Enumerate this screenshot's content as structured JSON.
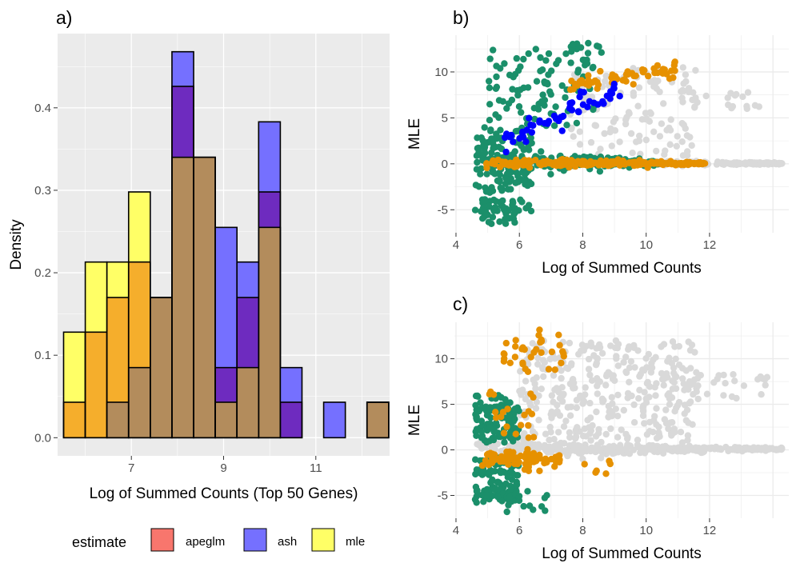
{
  "panels": {
    "a_label": "a)",
    "b_label": "b)",
    "c_label": "c)"
  },
  "legend": {
    "title": "estimate",
    "entries": [
      {
        "label": "apeglm",
        "color": "#F8766D"
      },
      {
        "label": "ash",
        "color": "#7570FF"
      },
      {
        "label": "mle",
        "color": "#FFFF66"
      }
    ]
  },
  "colors": {
    "panel_background": "#EBEBEB",
    "gridline": "#FFFFFF",
    "white_panel_grid": "#EBEBEB",
    "grey_points": "#D9D9D9",
    "green_points": "#1B8F6A",
    "orange_points": "#E69100",
    "blue_points": "#0000FF",
    "bar_outline": "#000000",
    "overlap_ash_mle": "#B38C5C",
    "overlap_ash_apeglm": "#6E2BBF",
    "overlap_mle_apeglm": "#F5AE2C"
  },
  "chart_data": [
    {
      "id": "a",
      "type": "bar",
      "subtype": "overlaid histogram",
      "xlabel": "Log of Summed Counts (Top 50 Genes)",
      "ylabel": "Density",
      "xlim": [
        5.4,
        12.6
      ],
      "ylim": [
        -0.022,
        0.49
      ],
      "x_ticks": [
        7,
        9,
        11
      ],
      "y_ticks": [
        0.0,
        0.1,
        0.2,
        0.3,
        0.4
      ],
      "y_tick_labels": [
        "0.0",
        "0.1",
        "0.2",
        "0.3",
        "0.4"
      ],
      "bin_width": 0.47,
      "bin_starts": [
        5.53,
        6.0,
        6.47,
        6.94,
        7.41,
        7.88,
        8.35,
        8.82,
        9.29,
        9.76,
        10.23,
        10.7,
        11.17,
        11.64,
        12.11
      ],
      "series": [
        {
          "name": "apeglm",
          "values": [
            0.043,
            0.128,
            0.17,
            0.213,
            0.17,
            0.426,
            0.34,
            0.085,
            0.17,
            0.298,
            0.043,
            0.0,
            0.0,
            0.0,
            0.043
          ]
        },
        {
          "name": "ash",
          "values": [
            0.0,
            0.0,
            0.043,
            0.085,
            0.17,
            0.468,
            0.34,
            0.255,
            0.213,
            0.383,
            0.085,
            0.0,
            0.043,
            0.0,
            0.043
          ]
        },
        {
          "name": "mle",
          "values": [
            0.128,
            0.213,
            0.213,
            0.298,
            0.17,
            0.34,
            0.34,
            0.043,
            0.085,
            0.255,
            0.0,
            0.0,
            0.0,
            0.0,
            0.043
          ]
        }
      ],
      "grid": true,
      "legend_position": "bottom"
    },
    {
      "id": "b",
      "type": "scatter",
      "xlabel": "Log of Summed Counts",
      "ylabel": "MLE",
      "xlim": [
        3.95,
        14.5
      ],
      "ylim": [
        -7.5,
        14.0
      ],
      "x_ticks": [
        4,
        6,
        8,
        10,
        12
      ],
      "y_ticks": [
        -5,
        0,
        5,
        10
      ],
      "grid": true,
      "series": [
        {
          "color": "grey",
          "clusters": [
            {
              "type": "band",
              "n": 170,
              "x": [
                8.8,
                14.3
              ],
              "y0": 0.05,
              "jitter0": 0.18,
              "jitter1": 0.04
            },
            {
              "type": "blob",
              "n": 120,
              "x": [
                7.6,
                11.6
              ],
              "y": [
                0.8,
                10.5
              ]
            },
            {
              "type": "blob",
              "n": 18,
              "x": [
                11.5,
                13.8
              ],
              "y": [
                6.0,
                8.0
              ]
            }
          ]
        },
        {
          "color": "green",
          "clusters": [
            {
              "type": "band",
              "n": 210,
              "x": [
                4.6,
                10.5
              ],
              "y0": 0.1,
              "jitter0": 0.8,
              "jitter1": 0.08
            },
            {
              "type": "blob",
              "n": 130,
              "x": [
                4.6,
                6.4
              ],
              "y": [
                -5.2,
                4.0
              ]
            },
            {
              "type": "blob",
              "n": 26,
              "x": [
                4.7,
                5.9
              ],
              "y": [
                -6.6,
                -4.5
              ]
            },
            {
              "type": "blob",
              "n": 95,
              "x": [
                5.0,
                8.4
              ],
              "y": [
                4.0,
                12.5
              ]
            },
            {
              "type": "blob",
              "n": 12,
              "x": [
                7.6,
                8.6
              ],
              "y": [
                12.0,
                13.2
              ]
            }
          ]
        },
        {
          "color": "orange",
          "clusters": [
            {
              "type": "band",
              "n": 260,
              "x": [
                4.9,
                11.9
              ],
              "y0": 0.05,
              "jitter0": 0.3,
              "jitter1": 0.05
            },
            {
              "type": "curve",
              "n": 55,
              "x": [
                7.6,
                11.0
              ],
              "y": [
                8.0,
                10.4
              ]
            }
          ]
        },
        {
          "color": "blue",
          "clusters": [
            {
              "type": "trend",
              "n": 55,
              "x": [
                5.4,
                9.2
              ],
              "y": [
                2.3,
                8.3
              ],
              "spread": 1.3
            }
          ]
        }
      ]
    },
    {
      "id": "c",
      "type": "scatter",
      "xlabel": "Log of Summed Counts",
      "ylabel": "MLE",
      "xlim": [
        3.95,
        14.5
      ],
      "ylim": [
        -7.5,
        14.0
      ],
      "x_ticks": [
        4,
        6,
        8,
        10,
        12
      ],
      "y_ticks": [
        -5,
        0,
        5,
        10
      ],
      "grid": true,
      "series": [
        {
          "color": "grey",
          "clusters": [
            {
              "type": "band",
              "n": 380,
              "x": [
                4.6,
                14.3
              ],
              "y0": 0.1,
              "jitter0": 0.5,
              "jitter1": 0.05
            },
            {
              "type": "blob",
              "n": 340,
              "x": [
                6.0,
                11.6
              ],
              "y": [
                1.0,
                12.0
              ]
            },
            {
              "type": "blob",
              "n": 25,
              "x": [
                11.5,
                13.9
              ],
              "y": [
                5.5,
                8.5
              ]
            }
          ]
        },
        {
          "color": "green",
          "clusters": [
            {
              "type": "blob",
              "n": 110,
              "x": [
                4.6,
                6.0
              ],
              "y": [
                0.8,
                6.0
              ]
            },
            {
              "type": "blob",
              "n": 120,
              "x": [
                4.6,
                6.0
              ],
              "y": [
                -5.8,
                -0.8
              ]
            },
            {
              "type": "blob",
              "n": 12,
              "x": [
                5.5,
                6.9
              ],
              "y": [
                -6.8,
                -4.5
              ]
            }
          ]
        },
        {
          "color": "orange",
          "clusters": [
            {
              "type": "band",
              "n": 70,
              "x": [
                4.8,
                7.3
              ],
              "y0": -1.0,
              "jitter0": 0.6,
              "jitter1": 0.3
            },
            {
              "type": "blob",
              "n": 35,
              "x": [
                5.5,
                7.5
              ],
              "y": [
                8.5,
                13.2
              ]
            },
            {
              "type": "blob",
              "n": 20,
              "x": [
                4.8,
                6.6
              ],
              "y": [
                1.0,
                6.5
              ]
            },
            {
              "type": "blob",
              "n": 14,
              "x": [
                5.6,
                9.1
              ],
              "y": [
                -3.3,
                -1.2
              ]
            }
          ]
        }
      ]
    }
  ]
}
